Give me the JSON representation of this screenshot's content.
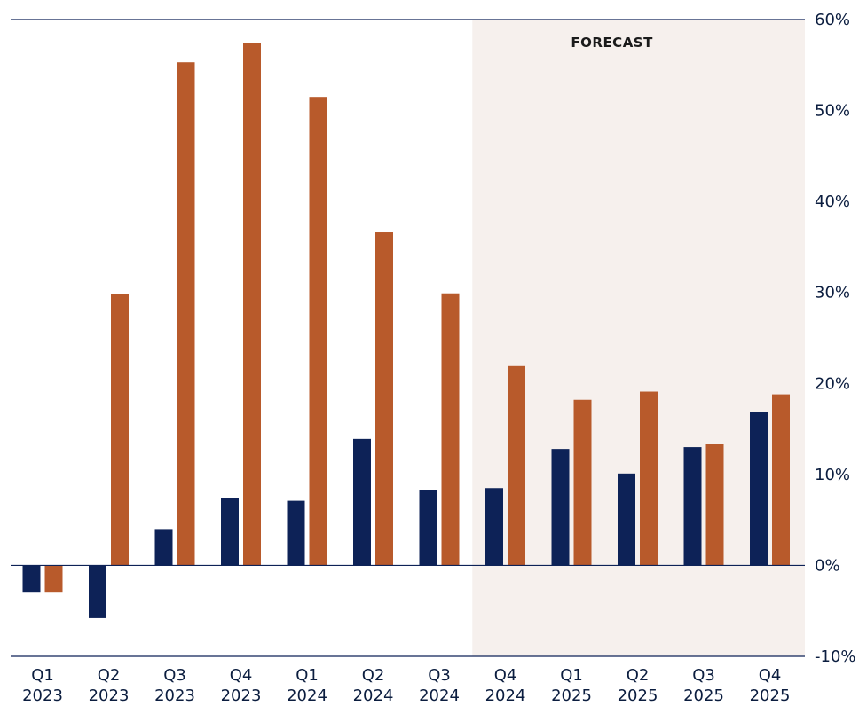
{
  "chart_data": {
    "type": "bar",
    "categories": [
      [
        "Q1",
        "2023"
      ],
      [
        "Q2",
        "2023"
      ],
      [
        "Q3",
        "2023"
      ],
      [
        "Q4",
        "2023"
      ],
      [
        "Q1",
        "2024"
      ],
      [
        "Q2",
        "2024"
      ],
      [
        "Q3",
        "2024"
      ],
      [
        "Q4",
        "2024"
      ],
      [
        "Q1",
        "2025"
      ],
      [
        "Q2",
        "2025"
      ],
      [
        "Q3",
        "2025"
      ],
      [
        "Q4",
        "2025"
      ]
    ],
    "series": [
      {
        "color": "#0d2257",
        "values": [
          -3.0,
          -5.8,
          4.0,
          7.4,
          7.1,
          13.9,
          8.3,
          8.5,
          12.8,
          10.1,
          13.0,
          16.9
        ]
      },
      {
        "color": "#b85a2b",
        "values": [
          -3.0,
          29.8,
          55.3,
          57.4,
          51.5,
          36.6,
          29.9,
          21.9,
          18.2,
          19.1,
          13.3,
          18.8
        ]
      }
    ],
    "ylim": [
      -10,
      60
    ],
    "yticks": [
      "60%",
      "50%",
      "40%",
      "30%",
      "20%",
      "10%",
      "0%",
      "-10%"
    ],
    "ytick_values": [
      60,
      50,
      40,
      30,
      20,
      10,
      0,
      -10
    ],
    "forecast": {
      "label": "FORECAST",
      "start_index": 7,
      "color": "#f6f0ed"
    },
    "grid": false,
    "axis_color": "#0d2257"
  }
}
